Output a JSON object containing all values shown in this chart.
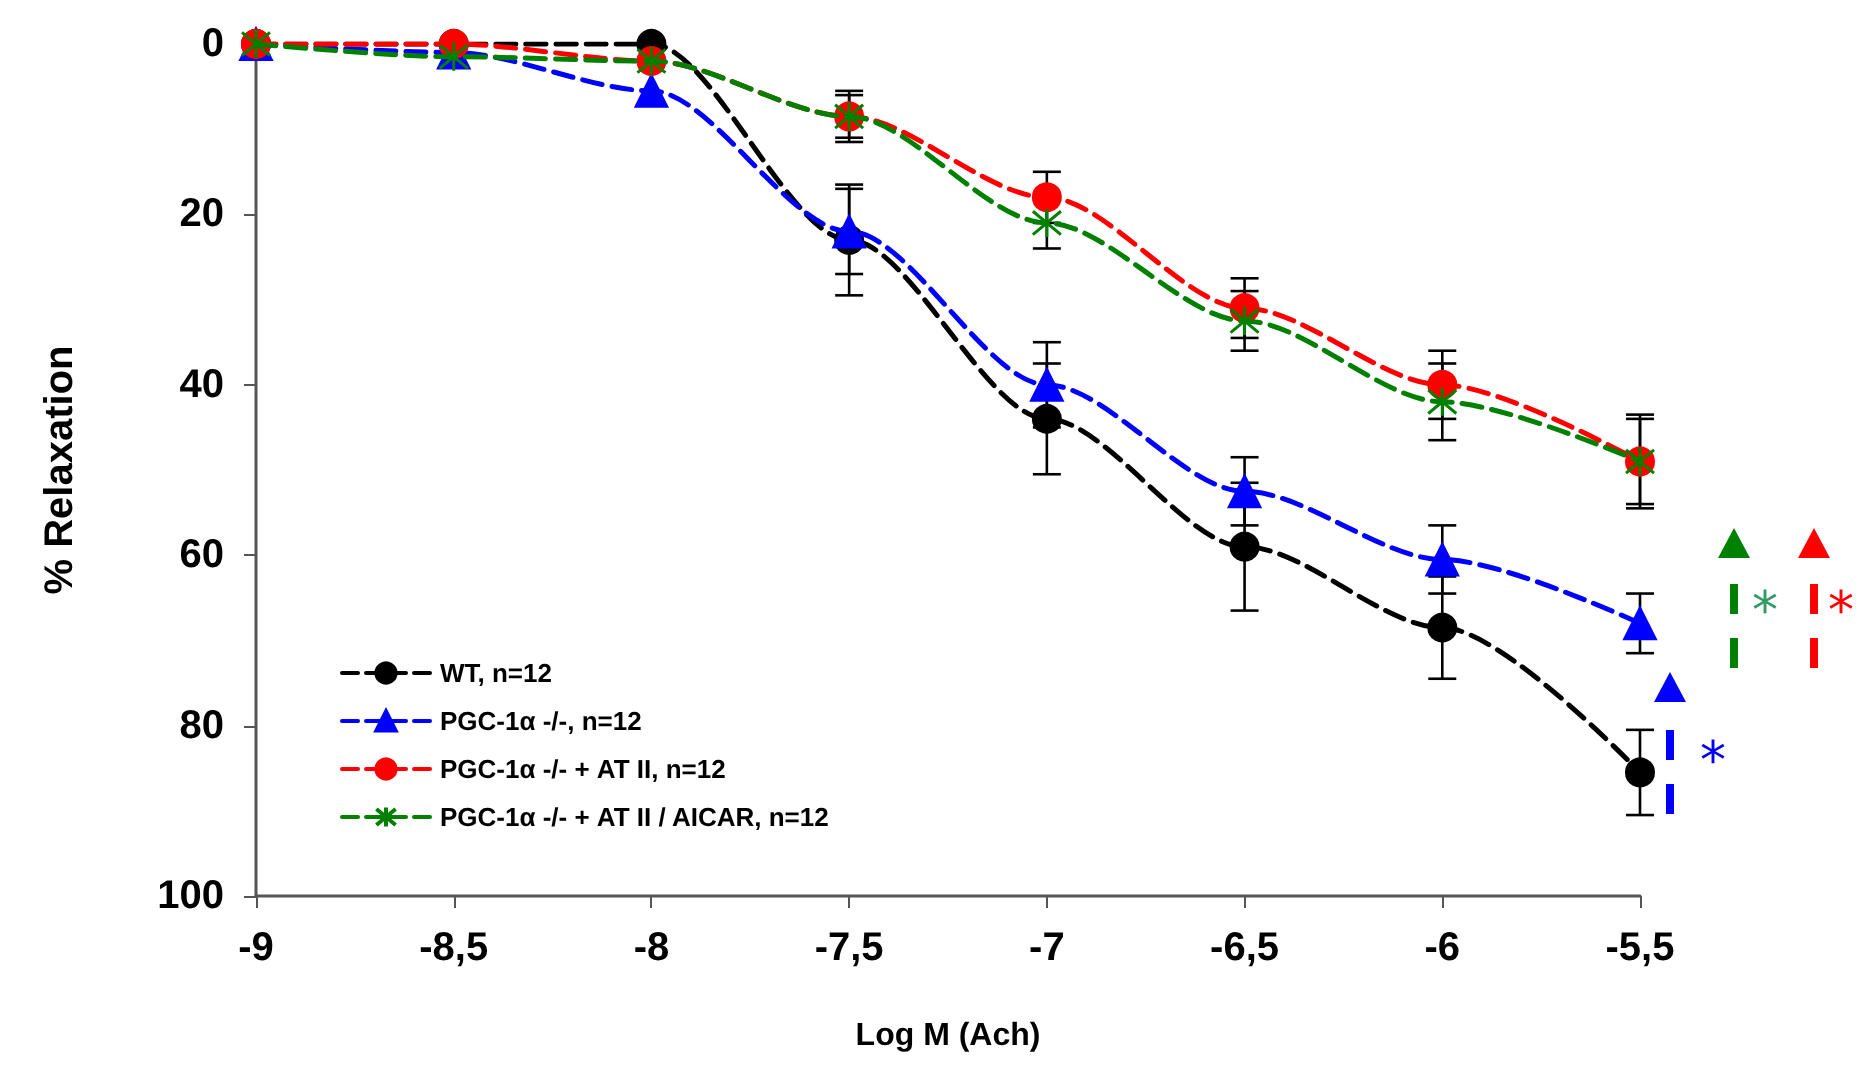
{
  "chart_data": {
    "type": "line",
    "xlabel": "Log M (Ach)",
    "ylabel": "% Relaxation",
    "x": [
      -9,
      -8.5,
      -8,
      -7.5,
      -7,
      -6.5,
      -6,
      -5.5
    ],
    "series": [
      {
        "name": "WT, n=12",
        "color": "#000000",
        "marker": "circle",
        "values": [
          0,
          0,
          0,
          23,
          44,
          59,
          68.5,
          85.5
        ],
        "errors": [
          null,
          null,
          null,
          6.5,
          6.5,
          7.5,
          6,
          5
        ]
      },
      {
        "name": "PGC-1α -/-, n=12",
        "color": "#0000ff",
        "marker": "triangle",
        "values": [
          0,
          1,
          5.5,
          22,
          40,
          52.5,
          60.5,
          68
        ],
        "errors": [
          null,
          null,
          null,
          5,
          5,
          4,
          4,
          3.5
        ]
      },
      {
        "name": "PGC-1α -/- + AT II, n=12",
        "color": "#ff0000",
        "marker": "circle",
        "values": [
          0,
          0,
          2,
          8.5,
          18,
          31,
          40,
          49
        ],
        "errors": [
          null,
          null,
          null,
          3,
          3,
          3.5,
          4,
          5
        ]
      },
      {
        "name": "PGC-1α -/- + AT II / AICAR, n=12",
        "color": "#008000",
        "marker": "cross",
        "values": [
          0,
          1.5,
          2,
          8.5,
          21,
          32.5,
          42,
          49
        ],
        "errors": [
          null,
          null,
          null,
          2.5,
          3,
          3.5,
          4.5,
          5.5
        ]
      }
    ],
    "xlim": [
      -9,
      -5.5
    ],
    "xticks": [
      -9,
      {
        "value": -8.5,
        "label": "-8,5"
      },
      -8,
      {
        "value": -7.5,
        "label": "-7,5"
      },
      -7,
      {
        "value": -6.5,
        "label": "-6,5"
      },
      -6,
      {
        "value": -5.5,
        "label": "-5,5"
      }
    ],
    "ylim": [
      100,
      0
    ],
    "yticks": [
      0,
      20,
      40,
      60,
      80,
      100
    ],
    "line_style": "dashed",
    "grid": false,
    "legend": "bottom left",
    "annotations": [
      "*",
      "*",
      "*"
    ]
  }
}
